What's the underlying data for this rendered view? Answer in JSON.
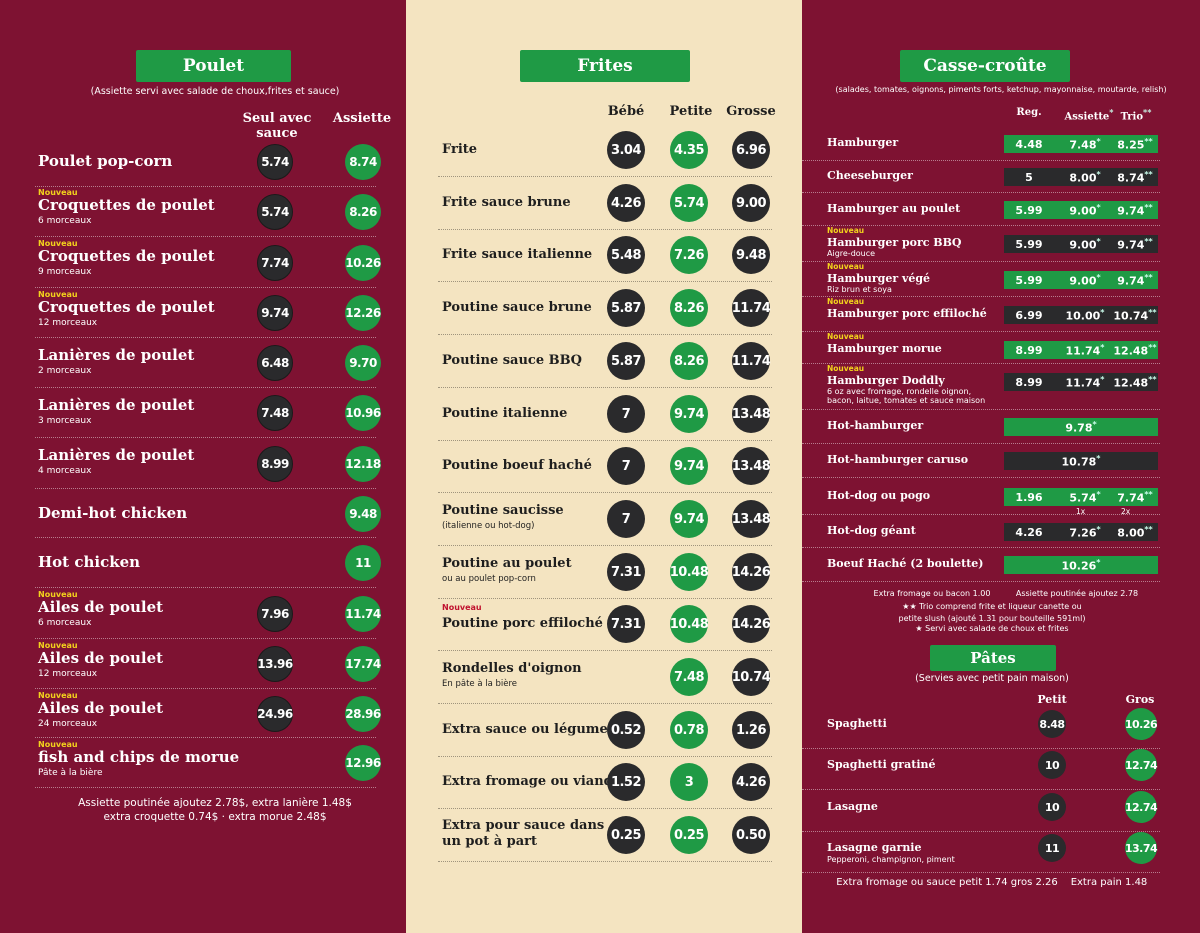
{
  "poulet": {
    "title": "Poulet",
    "note": "(Assiette servi avec salade de choux,frites et sauce)",
    "col_seul": "Seul avec sauce",
    "col_assiette": "Assiette",
    "items": [
      {
        "name": "Poulet pop-corn",
        "sub": "",
        "new": "",
        "seul": "5.74",
        "assiette": "8.74"
      },
      {
        "name": "Croquettes de poulet",
        "sub": "6 morceaux",
        "new": "Nouveau",
        "seul": "5.74",
        "assiette": "8.26"
      },
      {
        "name": "Croquettes de poulet",
        "sub": "9 morceaux",
        "new": "Nouveau",
        "seul": "7.74",
        "assiette": "10.26"
      },
      {
        "name": "Croquettes de poulet",
        "sub": "12 morceaux",
        "new": "Nouveau",
        "seul": "9.74",
        "assiette": "12.26"
      },
      {
        "name": "Lanières de poulet",
        "sub": "2 morceaux",
        "new": "",
        "seul": "6.48",
        "assiette": "9.70"
      },
      {
        "name": "Lanières de poulet",
        "sub": "3 morceaux",
        "new": "",
        "seul": "7.48",
        "assiette": "10.96"
      },
      {
        "name": "Lanières de poulet",
        "sub": "4 morceaux",
        "new": "",
        "seul": "8.99",
        "assiette": "12.18"
      },
      {
        "name": "Demi-hot chicken",
        "sub": "",
        "new": "",
        "seul": "",
        "assiette": "9.48"
      },
      {
        "name": "Hot chicken",
        "sub": "",
        "new": "",
        "seul": "",
        "assiette": "11"
      },
      {
        "name": "Ailes de poulet",
        "sub": "6 morceaux",
        "new": "Nouveau",
        "seul": "7.96",
        "assiette": "11.74"
      },
      {
        "name": "Ailes de poulet",
        "sub": "12 morceaux",
        "new": "Nouveau",
        "seul": "13.96",
        "assiette": "17.74"
      },
      {
        "name": "Ailes de poulet",
        "sub": "24 morceaux",
        "new": "Nouveau",
        "seul": "24.96",
        "assiette": "28.96"
      },
      {
        "name": "fish and chips de morue",
        "sub": "Pâte à la bière",
        "new": "Nouveau",
        "seul": "",
        "assiette": "12.96"
      }
    ],
    "footer_1": "Assiette poutinée ajoutez 2.78$, extra lanière 1.48$",
    "footer_2": "extra croquette 0.74$ ·  extra morue 2.48$"
  },
  "frites": {
    "title": "Frites",
    "col_bebe": "Bébé",
    "col_petite": "Petite",
    "col_grosse": "Grosse",
    "items": [
      {
        "name": "Frite",
        "sub": "",
        "new": "",
        "bebe": "3.04",
        "petite": "4.35",
        "grosse": "6.96"
      },
      {
        "name": "Frite sauce brune",
        "sub": "",
        "new": "",
        "bebe": "4.26",
        "petite": "5.74",
        "grosse": "9.00"
      },
      {
        "name": "Frite sauce italienne",
        "sub": "",
        "new": "",
        "bebe": "5.48",
        "petite": "7.26",
        "grosse": "9.48"
      },
      {
        "name": "Poutine sauce brune",
        "sub": "",
        "new": "",
        "bebe": "5.87",
        "petite": "8.26",
        "grosse": "11.74"
      },
      {
        "name": "Poutine sauce BBQ",
        "sub": "",
        "new": "",
        "bebe": "5.87",
        "petite": "8.26",
        "grosse": "11.74"
      },
      {
        "name": "Poutine italienne",
        "sub": "",
        "new": "",
        "bebe": "7",
        "petite": "9.74",
        "grosse": "13.48"
      },
      {
        "name": "Poutine boeuf haché",
        "sub": "",
        "new": "",
        "bebe": "7",
        "petite": "9.74",
        "grosse": "13.48"
      },
      {
        "name": "Poutine saucisse",
        "sub": "(italienne ou hot-dog)",
        "new": "",
        "bebe": "7",
        "petite": "9.74",
        "grosse": "13.48"
      },
      {
        "name": "Poutine au poulet",
        "sub": "ou au poulet pop-corn",
        "new": "",
        "bebe": "7.31",
        "petite": "10.48",
        "grosse": "14.26"
      },
      {
        "name": "Poutine porc effiloché",
        "sub": "",
        "new": "Nouveau",
        "bebe": "7.31",
        "petite": "10.48",
        "grosse": "14.26"
      },
      {
        "name": "Rondelles d'oignon",
        "sub": "En pâte à la bière",
        "new": "",
        "bebe": "",
        "petite": "7.48",
        "grosse": "10.74"
      },
      {
        "name": "Extra sauce ou légume",
        "sub": "",
        "new": "",
        "bebe": "0.52",
        "petite": "0.78",
        "grosse": "1.26"
      },
      {
        "name": "Extra fromage ou viande",
        "sub": "",
        "new": "",
        "bebe": "1.52",
        "petite": "3",
        "grosse": "4.26"
      },
      {
        "name": "Extra pour sauce dans",
        "name2": "un pot à part",
        "sub": "",
        "new": "",
        "bebe": "0.25",
        "petite": "0.25",
        "grosse": "0.50"
      }
    ]
  },
  "casse": {
    "title": "Casse-croûte",
    "note": "(salades, tomates, oignons, piments forts, ketchup, mayonnaise, moutarde, relish)",
    "col_reg": "Reg.",
    "col_assiette": "Assiette",
    "col_trio": "Trio",
    "star1": "*",
    "star2": "**",
    "items": [
      {
        "name": "Hamburger",
        "sub": "",
        "sub2": "",
        "new": "",
        "style": "g",
        "reg": "4.48",
        "assiette": "7.48",
        "trio": "8.25"
      },
      {
        "name": "Cheeseburger",
        "sub": "",
        "sub2": "",
        "new": "",
        "style": "d",
        "reg": "5",
        "assiette": "8.00",
        "trio": "8.74"
      },
      {
        "name": "Hamburger au poulet",
        "sub": "",
        "sub2": "",
        "new": "",
        "style": "g",
        "reg": "5.99",
        "assiette": "9.00",
        "trio": "9.74"
      },
      {
        "name": "Hamburger porc BBQ",
        "sub": "Aigre-douce",
        "sub2": "",
        "new": "Nouveau",
        "style": "d",
        "reg": "5.99",
        "assiette": "9.00",
        "trio": "9.74"
      },
      {
        "name": "Hamburger végé",
        "sub": "Riz brun et soya",
        "sub2": "",
        "new": "Nouveau",
        "style": "g",
        "reg": "5.99",
        "assiette": "9.00",
        "trio": "9.74"
      },
      {
        "name": "Hamburger porc effiloché",
        "sub": "",
        "sub2": "",
        "new": "Nouveau",
        "style": "d",
        "reg": "6.99",
        "assiette": "10.00",
        "trio": "10.74"
      },
      {
        "name": "Hamburger morue",
        "sub": "",
        "sub2": "",
        "new": "Nouveau",
        "style": "g",
        "reg": "8.99",
        "assiette": "11.74",
        "trio": "12.48"
      },
      {
        "name": "Hamburger Doddly",
        "sub": "6 oz avec fromage, rondelle oignon,",
        "sub2": "bacon, laitue, tomates et sauce maison",
        "new": "Nouveau",
        "style": "d",
        "reg": "8.99",
        "assiette": "11.74",
        "trio": "12.48"
      },
      {
        "name": "Hot-hamburger",
        "sub": "",
        "sub2": "",
        "new": "",
        "style": "g",
        "single": "9.78"
      },
      {
        "name": "Hot-hamburger caruso",
        "sub": "",
        "sub2": "",
        "new": "",
        "style": "d",
        "single": "10.78"
      },
      {
        "name": "Hot-dog ou pogo",
        "sub": "",
        "sub2": "",
        "new": "",
        "style": "g",
        "reg": "1.96",
        "assiette": "5.74",
        "trio": "7.74",
        "note_a": "1x",
        "note_t": "2x"
      },
      {
        "name": "Hot-dog géant",
        "sub": "",
        "sub2": "",
        "new": "",
        "style": "d",
        "reg": "4.26",
        "assiette": "7.26",
        "trio": "8.00"
      },
      {
        "name": "Boeuf Haché (2 boulette)",
        "sub": "",
        "sub2": "",
        "new": "",
        "style": "g",
        "single": "10.26"
      }
    ],
    "foot_1a": "Extra fromage ou bacon  1.00",
    "foot_1b": "Assiette poutinée ajoutez 2.78",
    "foot_2": "★★ Trio comprend frite et liqueur canette ou",
    "foot_3": "petite slush (ajouté 1.31 pour bouteille 591ml)",
    "foot_4": "★ Servi avec salade de choux et frites"
  },
  "pates": {
    "title": "Pâtes",
    "note": "(Servies avec petit pain maison)",
    "col_petit": "Petit",
    "col_gros": "Gros",
    "items": [
      {
        "name": "Spaghetti",
        "sub": "",
        "petit": "8.48",
        "gros": "10.26"
      },
      {
        "name": "Spaghetti gratiné",
        "sub": "",
        "petit": "10",
        "gros": "12.74"
      },
      {
        "name": "Lasagne",
        "sub": "",
        "petit": "10",
        "gros": "12.74"
      },
      {
        "name": "Lasagne garnie",
        "sub": "Pepperoni, champignon, piment",
        "petit": "11",
        "gros": "13.74"
      }
    ],
    "foot_a": "Extra fromage ou sauce  petit 1.74  gros 2.26",
    "foot_b": "Extra pain 1.48"
  },
  "colors": {
    "burgundy": "#7e1232",
    "cream": "#f4e4c1",
    "green": "#1f9a45",
    "dark": "#2a2a2c",
    "new_yellow": "#f2d21c"
  }
}
